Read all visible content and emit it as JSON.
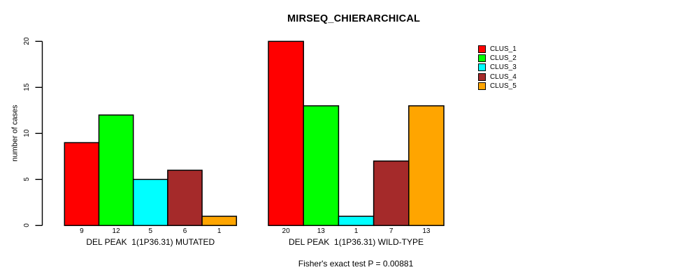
{
  "chart_data": {
    "type": "bar",
    "title": "MIRSEQ_CHIERARCHICAL",
    "ylabel": "number of cases",
    "ylim": [
      0,
      20
    ],
    "yticks": [
      0,
      5,
      10,
      15,
      20
    ],
    "grid": false,
    "legend_position": "right",
    "legend": [
      {
        "name": "CLUS_1",
        "color": "#FF0000"
      },
      {
        "name": "CLUS_2",
        "color": "#00FF00"
      },
      {
        "name": "CLUS_3",
        "color": "#00FFFF"
      },
      {
        "name": "CLUS_4",
        "color": "#A52A2A"
      },
      {
        "name": "CLUS_5",
        "color": "#FFA500"
      }
    ],
    "groups": [
      {
        "label": "DEL PEAK  1(1P36.31) MUTATED",
        "values": [
          9,
          12,
          5,
          6,
          1
        ]
      },
      {
        "label": "DEL PEAK  1(1P36.31) WILD-TYPE",
        "values": [
          20,
          13,
          1,
          7,
          13
        ]
      }
    ],
    "annotation": "Fisher's exact test P = 0.00881"
  }
}
